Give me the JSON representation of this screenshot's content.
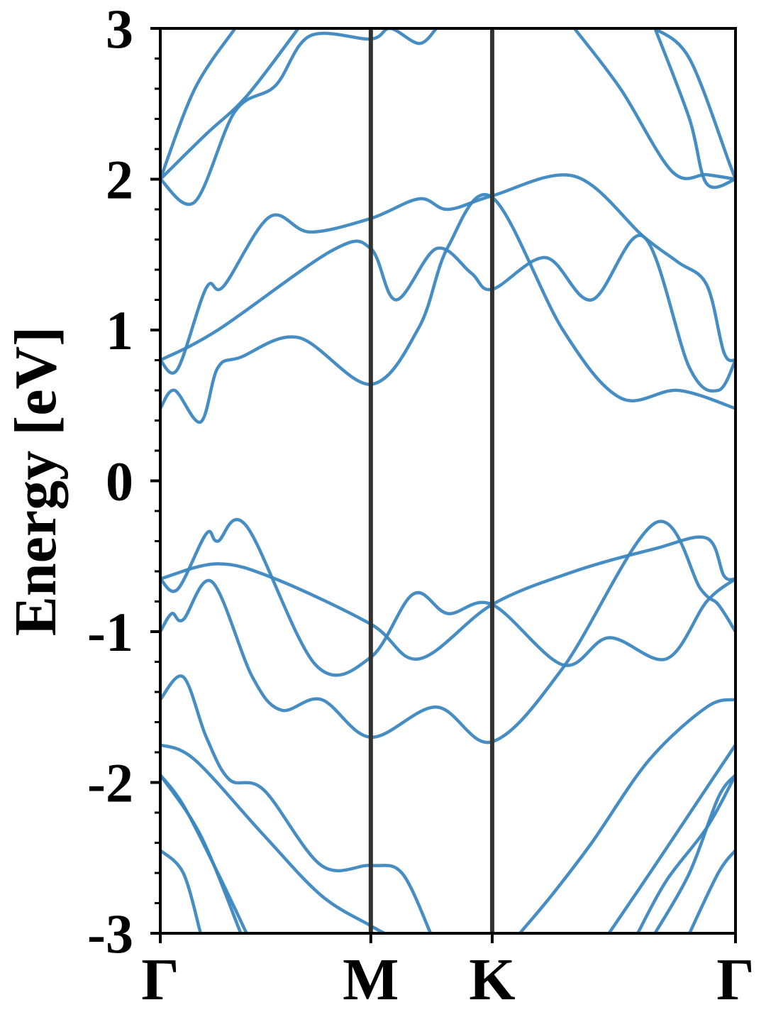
{
  "chart_data": {
    "type": "line",
    "title": "",
    "xlabel": "",
    "ylabel": "Energy [eV]",
    "ylim": [
      -3,
      3
    ],
    "yticks": [
      -3,
      -2,
      -1,
      0,
      1,
      2,
      3
    ],
    "xlim": [
      0,
      1
    ],
    "high_symmetry_points": [
      {
        "label": "Γ",
        "x": 0.0
      },
      {
        "label": "M",
        "x": 0.366
      },
      {
        "label": "K",
        "x": 0.577
      },
      {
        "label": "Γ",
        "x": 1.0
      }
    ],
    "grid": false,
    "legend": "none",
    "colors": {
      "band": "#3b87bf",
      "divider": "#333333",
      "axis": "#000000"
    },
    "series": [
      {
        "points": [
          [
            0.0,
            0.48
          ],
          [
            0.025,
            0.6
          ],
          [
            0.07,
            0.39
          ],
          [
            0.1,
            0.75
          ],
          [
            0.14,
            0.82
          ],
          [
            0.24,
            0.95
          ],
          [
            0.366,
            0.64
          ],
          [
            0.45,
            1.02
          ],
          [
            0.5,
            1.55
          ],
          [
            0.577,
            1.88
          ],
          [
            0.7,
            1.0
          ],
          [
            0.8,
            0.55
          ],
          [
            0.9,
            0.6
          ],
          [
            1.0,
            0.48
          ]
        ]
      },
      {
        "points": [
          [
            0.0,
            0.8
          ],
          [
            0.03,
            0.74
          ],
          [
            0.08,
            1.28
          ],
          [
            0.11,
            1.29
          ],
          [
            0.19,
            1.75
          ],
          [
            0.26,
            1.65
          ],
          [
            0.366,
            1.74
          ],
          [
            0.45,
            1.87
          ],
          [
            0.5,
            1.8
          ],
          [
            0.577,
            1.89
          ],
          [
            0.72,
            2.02
          ],
          [
            0.84,
            1.62
          ],
          [
            0.9,
            1.45
          ],
          [
            0.95,
            1.3
          ],
          [
            0.98,
            0.85
          ],
          [
            1.0,
            0.8
          ]
        ]
      },
      {
        "points": [
          [
            0.0,
            0.8
          ],
          [
            0.1,
            1.0
          ],
          [
            0.3,
            1.53
          ],
          [
            0.366,
            1.54
          ],
          [
            0.41,
            1.2
          ],
          [
            0.48,
            1.54
          ],
          [
            0.54,
            1.38
          ],
          [
            0.577,
            1.27
          ],
          [
            0.67,
            1.48
          ],
          [
            0.75,
            1.2
          ],
          [
            0.84,
            1.62
          ],
          [
            0.92,
            0.75
          ],
          [
            0.97,
            0.6
          ],
          [
            1.0,
            0.8
          ]
        ]
      },
      {
        "points": [
          [
            0.0,
            2.0
          ],
          [
            0.06,
            1.85
          ],
          [
            0.13,
            2.45
          ],
          [
            0.2,
            2.62
          ],
          [
            0.26,
            2.95
          ],
          [
            0.366,
            2.93
          ],
          [
            0.4,
            3.0
          ],
          [
            0.45,
            2.9
          ],
          [
            0.48,
            3.0
          ]
        ]
      },
      {
        "points": [
          [
            0.0,
            2.0
          ],
          [
            0.08,
            2.3
          ],
          [
            0.15,
            2.55
          ],
          [
            0.24,
            3.0
          ]
        ]
      },
      {
        "points": [
          [
            0.0,
            2.0
          ],
          [
            0.06,
            2.6
          ],
          [
            0.13,
            3.0
          ]
        ]
      },
      {
        "points": [
          [
            0.72,
            3.0
          ],
          [
            0.8,
            2.6
          ],
          [
            0.89,
            2.05
          ],
          [
            0.95,
            2.03
          ],
          [
            1.0,
            2.0
          ]
        ]
      },
      {
        "points": [
          [
            0.86,
            3.0
          ],
          [
            0.92,
            2.4
          ],
          [
            0.95,
            1.97
          ],
          [
            1.0,
            2.0
          ]
        ]
      },
      {
        "points": [
          [
            0.86,
            3.0
          ],
          [
            0.92,
            2.8
          ],
          [
            0.99,
            2.1
          ],
          [
            1.0,
            2.0
          ]
        ]
      },
      {
        "points": [
          [
            0.0,
            -0.65
          ],
          [
            0.03,
            -0.72
          ],
          [
            0.08,
            -0.35
          ],
          [
            0.1,
            -0.4
          ],
          [
            0.15,
            -0.3
          ],
          [
            0.27,
            -1.22
          ],
          [
            0.366,
            -1.17
          ],
          [
            0.44,
            -0.75
          ],
          [
            0.5,
            -0.88
          ],
          [
            0.577,
            -0.82
          ],
          [
            0.7,
            -1.22
          ],
          [
            0.78,
            -1.04
          ],
          [
            0.88,
            -1.18
          ],
          [
            0.95,
            -0.8
          ],
          [
            1.0,
            -0.65
          ]
        ]
      },
      {
        "points": [
          [
            0.0,
            -0.65
          ],
          [
            0.1,
            -0.55
          ],
          [
            0.2,
            -0.65
          ],
          [
            0.366,
            -0.95
          ],
          [
            0.45,
            -1.18
          ],
          [
            0.577,
            -0.82
          ],
          [
            0.72,
            -0.6
          ],
          [
            0.86,
            -0.45
          ],
          [
            0.95,
            -0.38
          ],
          [
            0.98,
            -0.63
          ],
          [
            1.0,
            -0.65
          ]
        ]
      },
      {
        "points": [
          [
            0.0,
            -1.0
          ],
          [
            0.02,
            -0.88
          ],
          [
            0.04,
            -0.92
          ],
          [
            0.09,
            -0.67
          ],
          [
            0.16,
            -1.3
          ],
          [
            0.21,
            -1.52
          ],
          [
            0.28,
            -1.45
          ],
          [
            0.366,
            -1.7
          ],
          [
            0.48,
            -1.5
          ],
          [
            0.577,
            -1.73
          ],
          [
            0.7,
            -1.24
          ],
          [
            0.86,
            -0.28
          ],
          [
            0.94,
            -0.72
          ],
          [
            0.97,
            -0.82
          ],
          [
            1.0,
            -1.0
          ]
        ]
      },
      {
        "points": [
          [
            0.0,
            -1.45
          ],
          [
            0.04,
            -1.3
          ],
          [
            0.08,
            -1.7
          ],
          [
            0.12,
            -1.98
          ],
          [
            0.18,
            -2.05
          ],
          [
            0.28,
            -2.55
          ],
          [
            0.366,
            -2.55
          ],
          [
            0.42,
            -2.6
          ],
          [
            0.47,
            -3.0
          ]
        ]
      },
      {
        "points": [
          [
            0.0,
            -1.75
          ],
          [
            0.06,
            -1.85
          ],
          [
            0.18,
            -2.35
          ],
          [
            0.28,
            -2.75
          ],
          [
            0.366,
            -2.95
          ],
          [
            0.39,
            -3.0
          ]
        ]
      },
      {
        "points": [
          [
            0.0,
            -1.95
          ],
          [
            0.07,
            -2.35
          ],
          [
            0.14,
            -3.0
          ]
        ]
      },
      {
        "points": [
          [
            0.0,
            -1.95
          ],
          [
            0.04,
            -2.15
          ],
          [
            0.1,
            -2.6
          ],
          [
            0.15,
            -3.0
          ]
        ]
      },
      {
        "points": [
          [
            0.0,
            -2.45
          ],
          [
            0.04,
            -2.6
          ],
          [
            0.07,
            -3.0
          ]
        ]
      },
      {
        "points": [
          [
            0.625,
            -3.0
          ],
          [
            0.68,
            -2.75
          ],
          [
            0.75,
            -2.4
          ],
          [
            0.85,
            -1.85
          ],
          [
            0.95,
            -1.5
          ],
          [
            1.0,
            -1.45
          ]
        ]
      },
      {
        "points": [
          [
            0.78,
            -3.0
          ],
          [
            0.86,
            -2.55
          ],
          [
            0.93,
            -2.15
          ],
          [
            1.0,
            -1.75
          ]
        ]
      },
      {
        "points": [
          [
            0.83,
            -3.0
          ],
          [
            0.88,
            -2.65
          ],
          [
            0.95,
            -2.3
          ],
          [
            1.0,
            -1.95
          ]
        ]
      },
      {
        "points": [
          [
            0.86,
            -3.0
          ],
          [
            0.92,
            -2.6
          ],
          [
            0.97,
            -2.1
          ],
          [
            1.0,
            -1.95
          ]
        ]
      },
      {
        "points": [
          [
            0.92,
            -3.0
          ],
          [
            0.97,
            -2.6
          ],
          [
            1.0,
            -2.45
          ]
        ]
      }
    ]
  }
}
